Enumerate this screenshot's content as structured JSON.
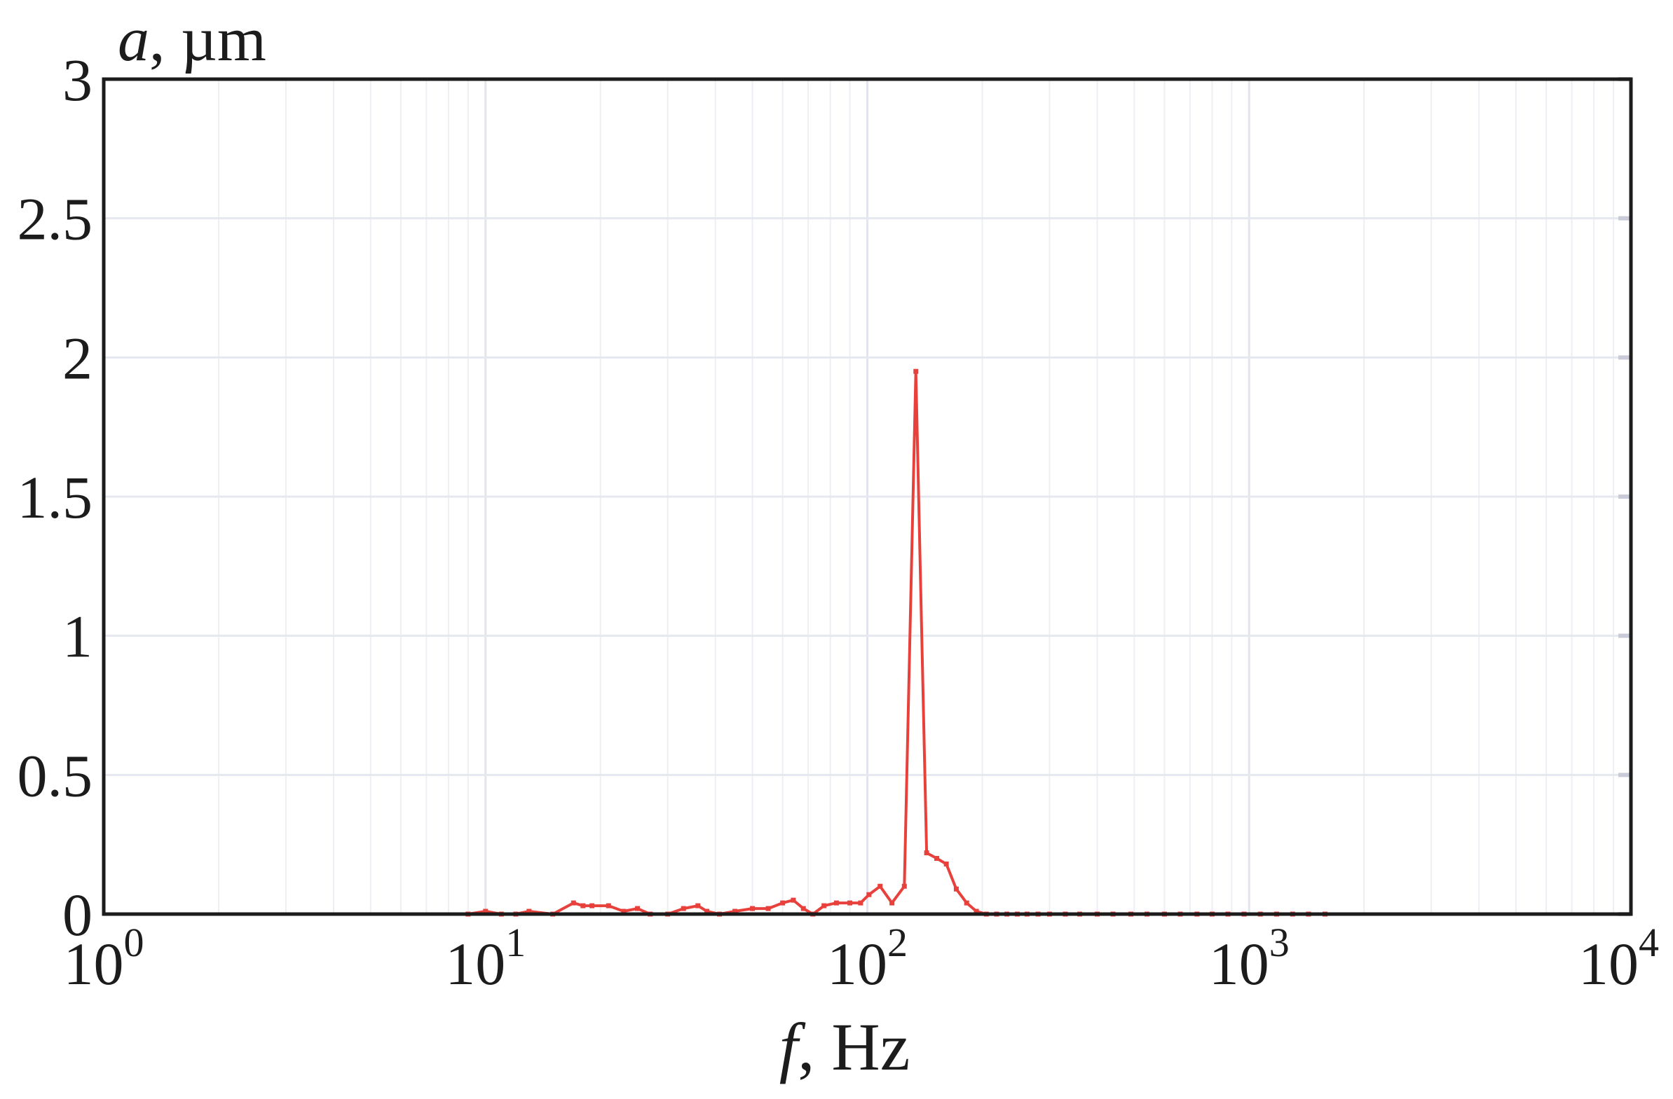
{
  "chart_data": {
    "type": "line",
    "title": "",
    "xscale": "log",
    "xlim": [
      1,
      10000
    ],
    "ylim": [
      0,
      3
    ],
    "grid": true,
    "xlabel": {
      "italic": "f",
      "rest": ", Hz"
    },
    "ylabel": {
      "italic": "a",
      "rest": ", µm"
    },
    "xticks": [
      {
        "value": 1,
        "base": "10",
        "exp": "0"
      },
      {
        "value": 10,
        "base": "10",
        "exp": "1"
      },
      {
        "value": 100,
        "base": "10",
        "exp": "2"
      },
      {
        "value": 1000,
        "base": "10",
        "exp": "3"
      },
      {
        "value": 10000,
        "base": "10",
        "exp": "4"
      }
    ],
    "yticks": [
      {
        "value": 0,
        "label": "0"
      },
      {
        "value": 0.5,
        "label": "0.5"
      },
      {
        "value": 1,
        "label": "1"
      },
      {
        "value": 1.5,
        "label": "1.5"
      },
      {
        "value": 2,
        "label": "2"
      },
      {
        "value": 2.5,
        "label": "2.5"
      },
      {
        "value": 3,
        "label": "3"
      }
    ],
    "series": [
      {
        "color": "#e8413c",
        "x": [
          9,
          10,
          11,
          12,
          13,
          15,
          17,
          18,
          19,
          21,
          23,
          25,
          27,
          30,
          33,
          36,
          38,
          41,
          45,
          50,
          55,
          60,
          64,
          68,
          72,
          77,
          83,
          90,
          96,
          101,
          108,
          116,
          125,
          134,
          143,
          152,
          161,
          171,
          182,
          193,
          205,
          218,
          232,
          247,
          262,
          280,
          300,
          330,
          360,
          400,
          440,
          490,
          540,
          600,
          660,
          730,
          800,
          880,
          970,
          1070,
          1180,
          1300,
          1430,
          1580
        ],
        "y": [
          0.0,
          0.01,
          0.0,
          0.0,
          0.01,
          0.0,
          0.04,
          0.03,
          0.03,
          0.03,
          0.01,
          0.02,
          0.0,
          0.0,
          0.02,
          0.03,
          0.01,
          0.0,
          0.01,
          0.02,
          0.02,
          0.04,
          0.05,
          0.02,
          0.0,
          0.03,
          0.04,
          0.04,
          0.04,
          0.07,
          0.1,
          0.04,
          0.1,
          1.95,
          0.22,
          0.2,
          0.18,
          0.09,
          0.04,
          0.01,
          0.0,
          0.0,
          0.0,
          0.0,
          0.0,
          0.0,
          0.0,
          0.0,
          0.0,
          0.0,
          0.0,
          0.0,
          0.0,
          0.0,
          0.0,
          0.0,
          0.0,
          0.0,
          0.0,
          0.0,
          0.0,
          0.0,
          0.0,
          0.0
        ]
      }
    ]
  }
}
